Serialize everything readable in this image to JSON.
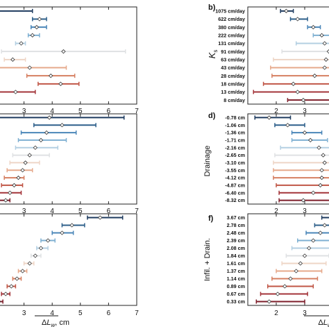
{
  "palette": [
    "#1d3a5e",
    "#2d5f8a",
    "#4a86b8",
    "#7fb0d2",
    "#b3cfe2",
    "#dfe1e3",
    "#eed5c6",
    "#e6a98b",
    "#d67f61",
    "#c05646",
    "#a33338",
    "#7e1e2a"
  ],
  "chart_data": [
    {
      "id": "left-top",
      "type": "scatter",
      "xlim": [
        2,
        7
      ],
      "categories": [
        "",
        "",
        "",
        "",
        "",
        "",
        "",
        "",
        "",
        "",
        "",
        ""
      ],
      "points": [
        {
          "x": null,
          "low": 1.5,
          "high": 3.3
        },
        {
          "x": 3.55,
          "low": 3.3,
          "high": 3.8
        },
        {
          "x": 3.45,
          "low": 3.25,
          "high": 3.8
        },
        {
          "x": 3.3,
          "low": 3.15,
          "high": 3.55
        },
        {
          "x": 2.9,
          "low": 2.7,
          "high": 3.05
        },
        {
          "x": 4.4,
          "low": 2.2,
          "high": 6.6
        },
        {
          "x": 2.6,
          "low": 2.3,
          "high": 3.05
        },
        {
          "x": 3.2,
          "low": 2.1,
          "high": 4.5
        },
        {
          "x": 3.95,
          "low": 3.1,
          "high": 4.8
        },
        {
          "x": 4.3,
          "low": 3.5,
          "high": 4.95
        },
        {
          "x": 2.7,
          "low": 2.0,
          "high": 3.4
        },
        {
          "x": null,
          "low": null,
          "high": null
        }
      ]
    },
    {
      "id": "left-middle",
      "type": "scatter",
      "xlim": [
        2,
        7
      ],
      "categories": [
        "",
        "",
        "",
        "",
        "",
        "",
        "",
        "",
        "",
        "",
        "",
        ""
      ],
      "points": [
        {
          "x": 3.9,
          "low": 1.8,
          "high": 6.55
        },
        {
          "x": 4.35,
          "low": 3.35,
          "high": 5.55
        },
        {
          "x": 3.8,
          "low": 2.9,
          "high": 4.85
        },
        {
          "x": 3.6,
          "low": 2.8,
          "high": 4.5
        },
        {
          "x": 3.4,
          "low": 2.7,
          "high": 4.2
        },
        {
          "x": 3.2,
          "low": 2.6,
          "high": 3.9
        },
        {
          "x": 3.05,
          "low": 2.5,
          "high": 3.55
        },
        {
          "x": 2.95,
          "low": 2.4,
          "high": 3.3
        },
        {
          "x": 2.8,
          "low": 2.3,
          "high": 3.0
        },
        {
          "x": 2.65,
          "low": 2.2,
          "high": 2.95
        },
        {
          "x": 2.5,
          "low": 2.1,
          "high": 2.9
        },
        {
          "x": 2.35,
          "low": 2.0,
          "high": 2.5
        }
      ]
    },
    {
      "id": "left-bottom",
      "type": "scatter",
      "xlim": [
        2,
        7
      ],
      "categories": [
        "",
        "",
        "",
        "",
        "",
        "",
        "",
        "",
        "",
        "",
        "",
        ""
      ],
      "points": [
        {
          "x": 5.7,
          "low": 5.25,
          "high": 6.5
        },
        {
          "x": 4.7,
          "low": 4.35,
          "high": 5.15
        },
        {
          "x": 4.35,
          "low": 4.0,
          "high": 4.75
        },
        {
          "x": 3.85,
          "low": 3.6,
          "high": 4.1
        },
        {
          "x": 3.6,
          "low": 3.45,
          "high": 3.85
        },
        {
          "x": 3.4,
          "low": 3.25,
          "high": 3.6
        },
        {
          "x": 3.2,
          "low": 3.0,
          "high": 3.35
        },
        {
          "x": 2.95,
          "low": 2.8,
          "high": 3.1
        },
        {
          "x": 2.75,
          "low": 2.6,
          "high": 2.9
        },
        {
          "x": 2.55,
          "low": 2.4,
          "high": 2.7
        },
        {
          "x": 2.35,
          "low": 2.2,
          "high": 2.5
        },
        {
          "x": 2.1,
          "low": 1.95,
          "high": 2.25
        }
      ],
      "xlabel": "ΔL_w, cm"
    },
    {
      "id": "b",
      "panel_label": "b)",
      "type": "scatter",
      "ylabel": "K_s",
      "xlim": [
        1,
        4
      ],
      "categories": [
        "1075 cm/day",
        "622 cm/day",
        "380 cm/day",
        "222 cm/day",
        "131 cm/day",
        "91 cm/day",
        "63 cm/day",
        "43 cm/day",
        "28 cm/day",
        "18 cm/day",
        "13 cm/day",
        "8 cm/day"
      ],
      "points": [
        {
          "x": 2.35,
          "low": 2.15,
          "high": 2.6
        },
        {
          "x": 2.75,
          "low": 2.5,
          "high": 3.1
        },
        {
          "x": 3.3,
          "low": 3.1,
          "high": 3.55
        },
        {
          "x": 3.6,
          "low": 3.3,
          "high": 3.9
        },
        {
          "x": 3.7,
          "low": 2.7,
          "high": 4.3
        },
        {
          "x": 3.85,
          "low": 2.2,
          "high": 4.5
        },
        {
          "x": 3.75,
          "low": 1.9,
          "high": 4.5
        },
        {
          "x": 3.7,
          "low": 1.8,
          "high": 4.6
        },
        {
          "x": 3.35,
          "low": 1.85,
          "high": 4.5
        },
        {
          "x": 2.6,
          "low": 1.55,
          "high": 4.4
        },
        {
          "x": 2.75,
          "low": 1.2,
          "high": 4.4
        },
        {
          "x": 2.95,
          "low": 2.4,
          "high": 4.5
        }
      ]
    },
    {
      "id": "d",
      "panel_label": "d)",
      "type": "scatter",
      "ylabel": "Drainage",
      "xlim": [
        1,
        4
      ],
      "categories": [
        "-0.78 cm",
        "-1.06 cm",
        "-1.36 cm",
        "-1.71 cm",
        "-2.16 cm",
        "-2.65 cm",
        "-3.10 cm",
        "-3.55 cm",
        "-4.12 cm",
        "-4.87 cm",
        "-6.40 cm",
        "-8.32 cm"
      ],
      "points": [
        {
          "x": 1.75,
          "low": 1.25,
          "high": 2.5
        },
        {
          "x": 2.4,
          "low": 1.95,
          "high": 3.0
        },
        {
          "x": 3.0,
          "low": 2.55,
          "high": 3.6
        },
        {
          "x": 3.2,
          "low": 2.55,
          "high": 3.8
        },
        {
          "x": 3.5,
          "low": 2.15,
          "high": 4.3
        },
        {
          "x": 3.65,
          "low": 1.95,
          "high": 4.4
        },
        {
          "x": 3.7,
          "low": 1.9,
          "high": 4.5
        },
        {
          "x": 3.6,
          "low": 1.9,
          "high": 4.5
        },
        {
          "x": 3.6,
          "low": 1.9,
          "high": 4.6
        },
        {
          "x": 3.55,
          "low": 2.0,
          "high": 4.6
        },
        {
          "x": 3.3,
          "low": 2.1,
          "high": 4.6
        },
        {
          "x": 2.95,
          "low": 2.1,
          "high": 4.5
        }
      ]
    },
    {
      "id": "f",
      "panel_label": "f)",
      "type": "scatter",
      "ylabel": "Infil. + Drain.",
      "xlim": [
        1,
        4
      ],
      "categories": [
        "3.67 cm",
        "2.78 cm",
        "2.48 cm",
        "2.39 cm",
        "2.08 cm",
        "1.84 cm",
        "1.61 cm",
        "1.37 cm",
        "1.14 cm",
        "0.89 cm",
        "0.67 cm",
        "0.33 cm"
      ],
      "points": [
        {
          "x": 3.95,
          "low": 3.6,
          "high": 4.4
        },
        {
          "x": 3.7,
          "low": 3.35,
          "high": 4.2
        },
        {
          "x": 3.55,
          "low": 3.05,
          "high": 4.1
        },
        {
          "x": 3.3,
          "low": 2.75,
          "high": 4.0
        },
        {
          "x": 3.15,
          "low": 2.55,
          "high": 3.9
        },
        {
          "x": 3.0,
          "low": 2.35,
          "high": 3.85
        },
        {
          "x": 2.85,
          "low": 2.2,
          "high": 3.75
        },
        {
          "x": 2.7,
          "low": 2.0,
          "high": 3.6
        },
        {
          "x": 2.5,
          "low": 1.85,
          "high": 3.45
        },
        {
          "x": 2.3,
          "low": 1.7,
          "high": 3.3
        },
        {
          "x": 2.05,
          "low": 1.45,
          "high": 3.1
        },
        {
          "x": 1.75,
          "low": 1.3,
          "high": 3.0
        }
      ],
      "xlabel": "ΔL_w"
    }
  ]
}
